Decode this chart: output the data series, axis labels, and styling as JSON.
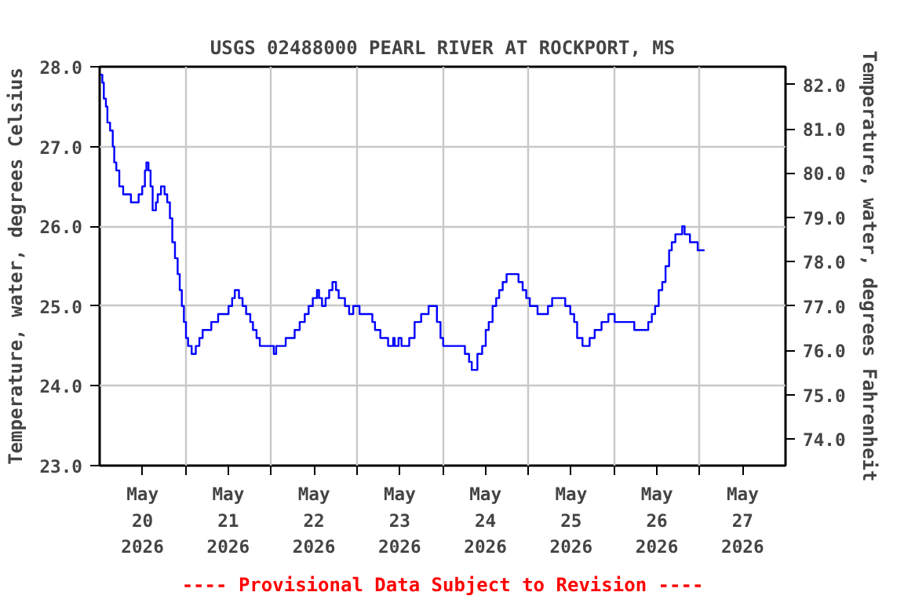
{
  "chart_data": {
    "type": "step",
    "title": "USGS 02488000 PEARL RIVER AT ROCKPORT, MS",
    "ylabel": "Temperature, water, degrees Celsius",
    "y2label": "Temperature, water, degrees Fahrenheit",
    "annotations": [
      "---- Provisional Data Subject to Revision ----"
    ],
    "xlim": [
      "2026-05-20T00:00",
      "2026-05-28T00:00"
    ],
    "xticks": [
      {
        "value": "2026-05-20T12:00",
        "label": "May\n20\n2026"
      },
      {
        "value": "2026-05-21T00:00",
        "label": null
      },
      {
        "value": "2026-05-21T12:00",
        "label": "May\n21\n2026"
      },
      {
        "value": "2026-05-22T00:00",
        "label": null
      },
      {
        "value": "2026-05-22T12:00",
        "label": "May\n22\n2026"
      },
      {
        "value": "2026-05-23T00:00",
        "label": null
      },
      {
        "value": "2026-05-23T12:00",
        "label": "May\n23\n2026"
      },
      {
        "value": "2026-05-24T00:00",
        "label": null
      },
      {
        "value": "2026-05-24T12:00",
        "label": "May\n24\n2026"
      },
      {
        "value": "2026-05-25T00:00",
        "label": null
      },
      {
        "value": "2026-05-25T12:00",
        "label": "May\n25\n2026"
      },
      {
        "value": "2026-05-26T00:00",
        "label": null
      },
      {
        "value": "2026-05-26T12:00",
        "label": "May\n26\n2026"
      },
      {
        "value": "2026-05-27T00:00",
        "label": null
      },
      {
        "value": "2026-05-27T12:00",
        "label": "May\n27\n2026"
      }
    ],
    "ylim": [
      23,
      28
    ],
    "yticks": [
      {
        "value": 23,
        "label": "23.0"
      },
      {
        "value": 24,
        "label": "24.0"
      },
      {
        "value": 25,
        "label": "25.0"
      },
      {
        "value": 26,
        "label": "26.0"
      },
      {
        "value": 27,
        "label": "27.0"
      },
      {
        "value": 28,
        "label": "28.0"
      }
    ],
    "y2lim": [
      73.4,
      82.4
    ],
    "y2ticks": [
      {
        "value": 74,
        "label": "74.0"
      },
      {
        "value": 75,
        "label": "75.0"
      },
      {
        "value": 76,
        "label": "76.0"
      },
      {
        "value": 77,
        "label": "77.0"
      },
      {
        "value": 78,
        "label": "78.0"
      },
      {
        "value": 79,
        "label": "79.0"
      },
      {
        "value": 80,
        "label": "80.0"
      },
      {
        "value": 81,
        "label": "81.0"
      },
      {
        "value": 82,
        "label": "82.0"
      }
    ],
    "grid": true,
    "series": [
      {
        "color": "#0000ff",
        "x": [
          "2026-05-20T00:15",
          "2026-05-20T00:45",
          "2026-05-20T01:10",
          "2026-05-20T01:45",
          "2026-05-20T02:10",
          "2026-05-20T02:55",
          "2026-05-20T03:40",
          "2026-05-20T04:05",
          "2026-05-20T04:40",
          "2026-05-20T05:30",
          "2026-05-20T06:35",
          "2026-05-20T08:45",
          "2026-05-20T10:55",
          "2026-05-20T11:55",
          "2026-05-20T12:40",
          "2026-05-20T13:05",
          "2026-05-20T13:40",
          "2026-05-20T14:15",
          "2026-05-20T14:50",
          "2026-05-20T15:45",
          "2026-05-20T16:15",
          "2026-05-20T17:10",
          "2026-05-20T18:10",
          "2026-05-20T18:55",
          "2026-05-20T19:40",
          "2026-05-20T20:20",
          "2026-05-20T21:05",
          "2026-05-20T21:50",
          "2026-05-20T22:25",
          "2026-05-20T23:00",
          "2026-05-20T23:35",
          "2026-05-21T00:10",
          "2026-05-21T00:45",
          "2026-05-21T01:45",
          "2026-05-21T02:55",
          "2026-05-21T03:55",
          "2026-05-21T04:50",
          "2026-05-21T07:15",
          "2026-05-21T09:10",
          "2026-05-21T12:05",
          "2026-05-21T13:05",
          "2026-05-21T13:50",
          "2026-05-21T15:00",
          "2026-05-21T16:00",
          "2026-05-21T17:00",
          "2026-05-21T18:10",
          "2026-05-21T18:55",
          "2026-05-21T19:55",
          "2026-05-21T20:50",
          "2026-05-22T00:45",
          "2026-05-22T01:25",
          "2026-05-22T04:05",
          "2026-05-22T06:35",
          "2026-05-22T08:00",
          "2026-05-22T09:25",
          "2026-05-22T10:30",
          "2026-05-22T11:40",
          "2026-05-22T12:50",
          "2026-05-22T13:25",
          "2026-05-22T14:15",
          "2026-05-22T15:15",
          "2026-05-22T16:15",
          "2026-05-22T17:10",
          "2026-05-22T18:10",
          "2026-05-22T18:55",
          "2026-05-22T20:40",
          "2026-05-22T21:50",
          "2026-05-22T23:00",
          "2026-05-23T00:45",
          "2026-05-23T04:20",
          "2026-05-23T05:05",
          "2026-05-23T06:35",
          "2026-05-23T07:45",
          "2026-05-23T08:45",
          "2026-05-23T10:10",
          "2026-05-23T10:35",
          "2026-05-23T11:40",
          "2026-05-23T12:30",
          "2026-05-23T14:40",
          "2026-05-23T16:10",
          "2026-05-23T18:00",
          "2026-05-23T20:05",
          "2026-05-23T22:25",
          "2026-05-23T23:25",
          "2026-05-24T00:10",
          "2026-05-24T06:15",
          "2026-05-24T07:25",
          "2026-05-24T08:10",
          "2026-05-24T09:45",
          "2026-05-24T11:05",
          "2026-05-24T12:05",
          "2026-05-24T12:55",
          "2026-05-24T14:00",
          "2026-05-24T15:00",
          "2026-05-24T15:50",
          "2026-05-24T16:50",
          "2026-05-24T17:55",
          "2026-05-24T21:15",
          "2026-05-24T22:25",
          "2026-05-24T23:25",
          "2026-05-25T00:25",
          "2026-05-25T02:35",
          "2026-05-25T05:30",
          "2026-05-25T06:40",
          "2026-05-25T10:20",
          "2026-05-25T11:45",
          "2026-05-25T12:50",
          "2026-05-25T13:40",
          "2026-05-25T15:10",
          "2026-05-25T17:10",
          "2026-05-25T18:35",
          "2026-05-25T20:30",
          "2026-05-25T22:25",
          "2026-05-26T00:10",
          "2026-05-26T05:40",
          "2026-05-26T09:35",
          "2026-05-26T10:35",
          "2026-05-26T11:30",
          "2026-05-26T12:30",
          "2026-05-26T13:30",
          "2026-05-26T14:25",
          "2026-05-26T15:25",
          "2026-05-26T16:10",
          "2026-05-26T17:10",
          "2026-05-26T19:05",
          "2026-05-26T19:45",
          "2026-05-26T21:15",
          "2026-05-26T23:25",
          "2026-05-27T01:20"
        ],
        "values": [
          27.9,
          27.8,
          27.6,
          27.5,
          27.3,
          27.2,
          27.0,
          26.8,
          26.7,
          26.5,
          26.4,
          26.3,
          26.4,
          26.5,
          26.7,
          26.8,
          26.7,
          26.5,
          26.2,
          26.3,
          26.4,
          26.5,
          26.4,
          26.3,
          26.1,
          25.8,
          25.6,
          25.4,
          25.2,
          25.0,
          24.8,
          24.6,
          24.5,
          24.4,
          24.5,
          24.6,
          24.7,
          24.8,
          24.9,
          25.0,
          25.1,
          25.2,
          25.1,
          25.0,
          24.9,
          24.8,
          24.7,
          24.6,
          24.5,
          24.4,
          24.5,
          24.6,
          24.7,
          24.8,
          24.9,
          25.0,
          25.1,
          25.2,
          25.1,
          25.0,
          25.1,
          25.2,
          25.3,
          25.2,
          25.1,
          25.0,
          24.9,
          25.0,
          24.9,
          24.8,
          24.7,
          24.6,
          24.6,
          24.5,
          24.6,
          24.5,
          24.6,
          24.5,
          24.6,
          24.8,
          24.9,
          25.0,
          24.8,
          24.6,
          24.5,
          24.4,
          24.3,
          24.2,
          24.4,
          24.5,
          24.7,
          24.8,
          25.0,
          25.1,
          25.2,
          25.3,
          25.4,
          25.3,
          25.2,
          25.1,
          25.0,
          24.9,
          25.0,
          25.1,
          25.0,
          24.9,
          24.8,
          24.6,
          24.5,
          24.6,
          24.7,
          24.8,
          24.9,
          24.8,
          24.7,
          24.8,
          24.9,
          25.0,
          25.2,
          25.3,
          25.5,
          25.7,
          25.8,
          25.9,
          26.0,
          25.9,
          25.8,
          25.7,
          25.7
        ]
      }
    ]
  }
}
